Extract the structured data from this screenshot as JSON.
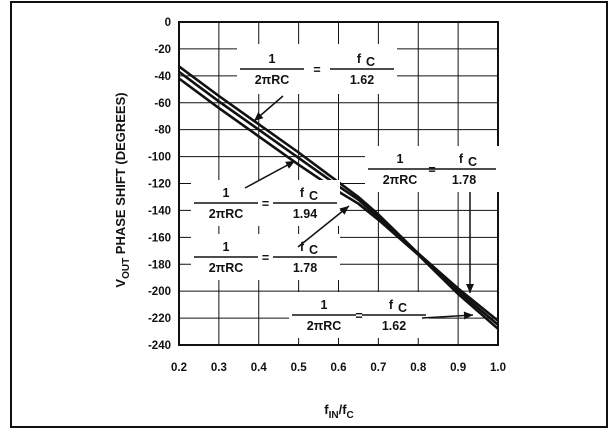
{
  "chart_data": {
    "type": "line",
    "title": "",
    "xlabel": {
      "base": "f",
      "sub1": "IN",
      "slash": "/f",
      "sub2": "C"
    },
    "ylabel": {
      "base": "V",
      "sub": "OUT",
      "rest": " PHASE SHIFT (DEGREES)"
    },
    "xlim": [
      0.2,
      1.0
    ],
    "ylim": [
      -240,
      0
    ],
    "x_ticks": [
      "0.2",
      "0.3",
      "0.4",
      "0.5",
      "0.6",
      "0.7",
      "0.8",
      "0.9",
      "1.0"
    ],
    "y_ticks": [
      "0",
      "-20",
      "-40",
      "-60",
      "-80",
      "-100",
      "-120",
      "-140",
      "-160",
      "-180",
      "-200",
      "-220",
      "-240"
    ],
    "grid": true,
    "series": [
      {
        "x": [
          0.2,
          0.3,
          0.4,
          0.5,
          0.6,
          0.65,
          0.7,
          0.8,
          0.9,
          1.0
        ],
        "y": [
          -33,
          -55,
          -76,
          -97,
          -119,
          -130,
          -143,
          -172,
          -198,
          -222
        ]
      },
      {
        "x": [
          0.2,
          0.3,
          0.4,
          0.5,
          0.6,
          0.65,
          0.7,
          0.8,
          0.9,
          1.0
        ],
        "y": [
          -37,
          -59,
          -80,
          -101,
          -122,
          -132,
          -145,
          -172,
          -200,
          -225
        ]
      },
      {
        "x": [
          0.2,
          0.3,
          0.4,
          0.5,
          0.6,
          0.65,
          0.7,
          0.8,
          0.9,
          1.0
        ],
        "y": [
          -42,
          -64,
          -85,
          -106,
          -126,
          -135,
          -147,
          -173,
          -202,
          -228
        ]
      }
    ],
    "annotations": [
      {
        "num": "1",
        "den": "2πRC",
        "eq": "=",
        "num2": "f",
        "num2_sub": "C",
        "den2": "1.62"
      },
      {
        "num": "1",
        "den": "2πRC",
        "eq": "=",
        "num2": "f",
        "num2_sub": "C",
        "den2": "1.78"
      },
      {
        "num": "1",
        "den": "2πRC",
        "eq": "=",
        "num2": "f",
        "num2_sub": "C",
        "den2": "1.94"
      },
      {
        "num": "1",
        "den": "2πRC",
        "eq": "=",
        "num2": "f",
        "num2_sub": "C",
        "den2": "1.78"
      },
      {
        "num": "1",
        "den": "2πRC",
        "eq": "=",
        "num2": "f",
        "num2_sub": "C",
        "den2": "1.62"
      }
    ]
  }
}
